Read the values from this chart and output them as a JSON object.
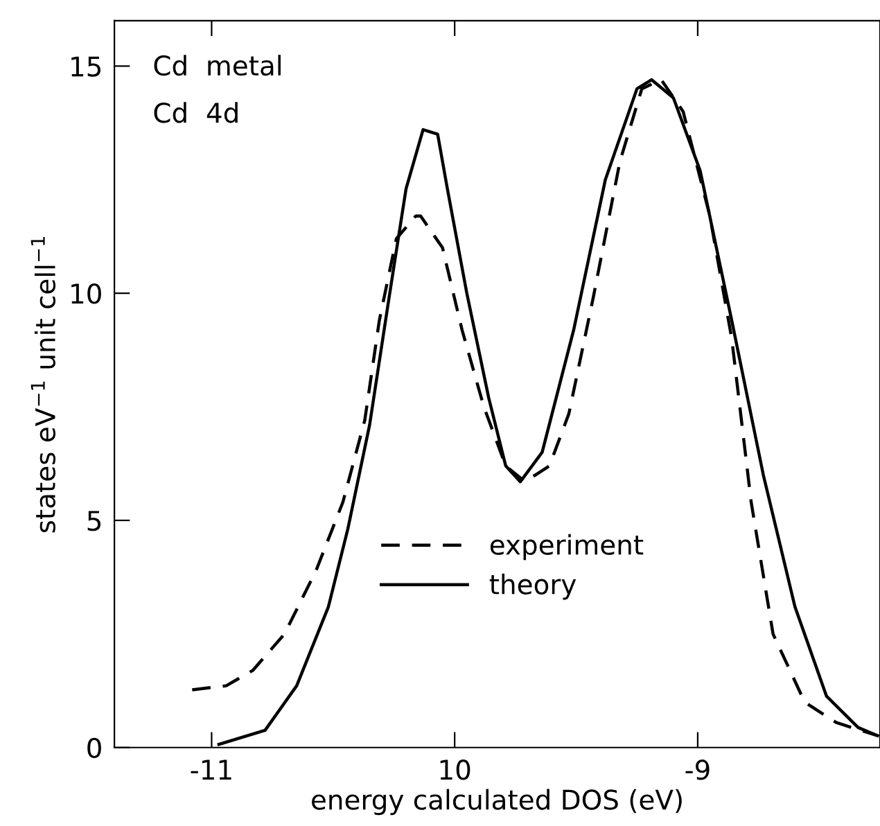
{
  "chart_data": {
    "type": "line",
    "xlabel": "energy calculated DOS (eV)",
    "ylabel": "states eV$^{−1}$ unit cell$^{−1}$",
    "annotations": [
      "Cd  metal",
      "Cd  4d"
    ],
    "xlim": [
      -11.4,
      -8.25
    ],
    "ylim": [
      0,
      16
    ],
    "xticks": [
      -11,
      {
        "value": -10,
        "label": "10"
      },
      -9
    ],
    "yticks": [
      0,
      5,
      10,
      15
    ],
    "grid": false,
    "legend": "lower center",
    "marker": "none",
    "series": [
      {
        "name": "experiment",
        "color": "#000000",
        "line_style": "dashed",
        "x": [
          -11.08,
          -10.94,
          -10.83,
          -10.7,
          -10.57,
          -10.46,
          -10.37,
          -10.31,
          -10.24,
          -10.16,
          -10.14,
          -10.05,
          -9.97,
          -9.88,
          -9.79,
          -9.71,
          -9.61,
          -9.53,
          -9.43,
          -9.32,
          -9.23,
          -9.15,
          -9.06,
          -8.95,
          -8.86,
          -8.78,
          -8.69,
          -8.56,
          -8.43,
          -8.26
        ],
        "values": [
          1.27,
          1.36,
          1.7,
          2.5,
          3.9,
          5.4,
          7.2,
          9.4,
          11.2,
          11.7,
          11.7,
          11.0,
          9.2,
          7.5,
          6.2,
          5.85,
          6.2,
          7.35,
          9.9,
          12.9,
          14.5,
          14.7,
          14.0,
          11.7,
          9.0,
          5.4,
          2.5,
          1.0,
          0.55,
          0.26
        ]
      },
      {
        "name": "theory",
        "color": "#000000",
        "line_style": "solid",
        "x": [
          -10.97,
          -10.78,
          -10.65,
          -10.52,
          -10.44,
          -10.35,
          -10.27,
          -10.2,
          -10.13,
          -10.07,
          -10.03,
          -9.95,
          -9.86,
          -9.79,
          -9.73,
          -9.64,
          -9.51,
          -9.38,
          -9.25,
          -9.19,
          -9.1,
          -8.99,
          -8.86,
          -8.73,
          -8.6,
          -8.47,
          -8.34,
          -8.26
        ],
        "values": [
          0.07,
          0.38,
          1.36,
          3.09,
          4.8,
          7.1,
          9.9,
          12.3,
          13.6,
          13.5,
          12.3,
          10.0,
          7.7,
          6.2,
          5.85,
          6.5,
          9.2,
          12.5,
          14.5,
          14.7,
          14.3,
          12.7,
          9.4,
          6.0,
          3.1,
          1.13,
          0.44,
          0.26
        ]
      }
    ]
  }
}
